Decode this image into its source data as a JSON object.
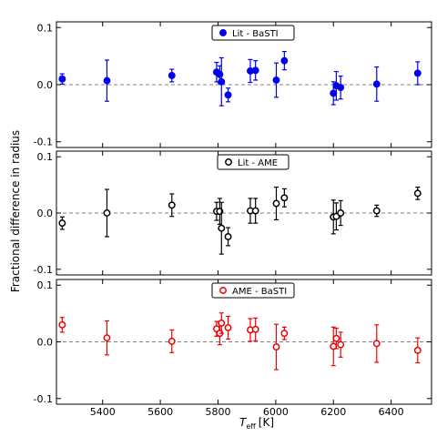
{
  "chart_data": {
    "type": "scatter",
    "xlabel": "T",
    "xlabel_sub": "eff",
    "xlabel_unit": "[K]",
    "ylabel": "Fractional difference in radius",
    "xlim": [
      5240,
      6540
    ],
    "x_ticks": [
      "5400",
      "5600",
      "5800",
      "6000",
      "6200",
      "6400"
    ],
    "y_ticks": [
      "-0.1",
      "0.0",
      "0.1"
    ],
    "grid": false,
    "reference_line": 0.0,
    "panels": [
      {
        "legend": "Lit - BaSTI",
        "color": "#0000ee",
        "marker": "filled-circle",
        "ylim": [
          -0.11,
          0.11
        ],
        "points": [
          {
            "x": 5260,
            "y": 0.01,
            "err": 0.009
          },
          {
            "x": 5415,
            "y": 0.007,
            "err": 0.036
          },
          {
            "x": 5640,
            "y": 0.016,
            "err": 0.011
          },
          {
            "x": 5795,
            "y": 0.022,
            "err": 0.017
          },
          {
            "x": 5806,
            "y": 0.018,
            "err": 0.015
          },
          {
            "x": 5812,
            "y": 0.005,
            "err": 0.042
          },
          {
            "x": 5835,
            "y": -0.018,
            "err": 0.012
          },
          {
            "x": 5912,
            "y": 0.024,
            "err": 0.02
          },
          {
            "x": 5930,
            "y": 0.025,
            "err": 0.017
          },
          {
            "x": 6002,
            "y": 0.008,
            "err": 0.03
          },
          {
            "x": 6030,
            "y": 0.042,
            "err": 0.016
          },
          {
            "x": 6200,
            "y": -0.015,
            "err": 0.02
          },
          {
            "x": 6210,
            "y": -0.002,
            "err": 0.025
          },
          {
            "x": 6225,
            "y": -0.005,
            "err": 0.02
          },
          {
            "x": 6350,
            "y": 0.001,
            "err": 0.03
          },
          {
            "x": 6492,
            "y": 0.02,
            "err": 0.02
          }
        ]
      },
      {
        "legend": "Lit - AME",
        "color": "#000000",
        "marker": "open-circle",
        "ylim": [
          -0.11,
          0.11
        ],
        "points": [
          {
            "x": 5260,
            "y": -0.018,
            "err": 0.011
          },
          {
            "x": 5415,
            "y": 0.0,
            "err": 0.042
          },
          {
            "x": 5640,
            "y": 0.014,
            "err": 0.02
          },
          {
            "x": 5795,
            "y": 0.003,
            "err": 0.016
          },
          {
            "x": 5806,
            "y": 0.003,
            "err": 0.023
          },
          {
            "x": 5812,
            "y": -0.027,
            "err": 0.046
          },
          {
            "x": 5835,
            "y": -0.042,
            "err": 0.016
          },
          {
            "x": 5912,
            "y": 0.004,
            "err": 0.022
          },
          {
            "x": 5930,
            "y": 0.004,
            "err": 0.022
          },
          {
            "x": 6002,
            "y": 0.017,
            "err": 0.029
          },
          {
            "x": 6030,
            "y": 0.027,
            "err": 0.016
          },
          {
            "x": 6200,
            "y": -0.007,
            "err": 0.03
          },
          {
            "x": 6210,
            "y": -0.006,
            "err": 0.024
          },
          {
            "x": 6225,
            "y": 0.0,
            "err": 0.022
          },
          {
            "x": 6350,
            "y": 0.004,
            "err": 0.01
          },
          {
            "x": 6492,
            "y": 0.035,
            "err": 0.011
          }
        ]
      },
      {
        "legend": "AME - BaSTI",
        "color": "#ee0000",
        "marker": "open-circle",
        "ylim": [
          -0.11,
          0.11
        ],
        "points": [
          {
            "x": 5260,
            "y": 0.03,
            "err": 0.013
          },
          {
            "x": 5415,
            "y": 0.007,
            "err": 0.03
          },
          {
            "x": 5640,
            "y": 0.001,
            "err": 0.02
          },
          {
            "x": 5795,
            "y": 0.023,
            "err": 0.013
          },
          {
            "x": 5806,
            "y": 0.015,
            "err": 0.02
          },
          {
            "x": 5812,
            "y": 0.033,
            "err": 0.018
          },
          {
            "x": 5835,
            "y": 0.025,
            "err": 0.02
          },
          {
            "x": 5912,
            "y": 0.021,
            "err": 0.02
          },
          {
            "x": 5930,
            "y": 0.022,
            "err": 0.02
          },
          {
            "x": 6002,
            "y": -0.009,
            "err": 0.04
          },
          {
            "x": 6030,
            "y": 0.015,
            "err": 0.011
          },
          {
            "x": 6200,
            "y": -0.008,
            "err": 0.034
          },
          {
            "x": 6210,
            "y": 0.006,
            "err": 0.018
          },
          {
            "x": 6225,
            "y": -0.005,
            "err": 0.022
          },
          {
            "x": 6350,
            "y": -0.003,
            "err": 0.033
          },
          {
            "x": 6492,
            "y": -0.015,
            "err": 0.022
          }
        ]
      }
    ]
  }
}
